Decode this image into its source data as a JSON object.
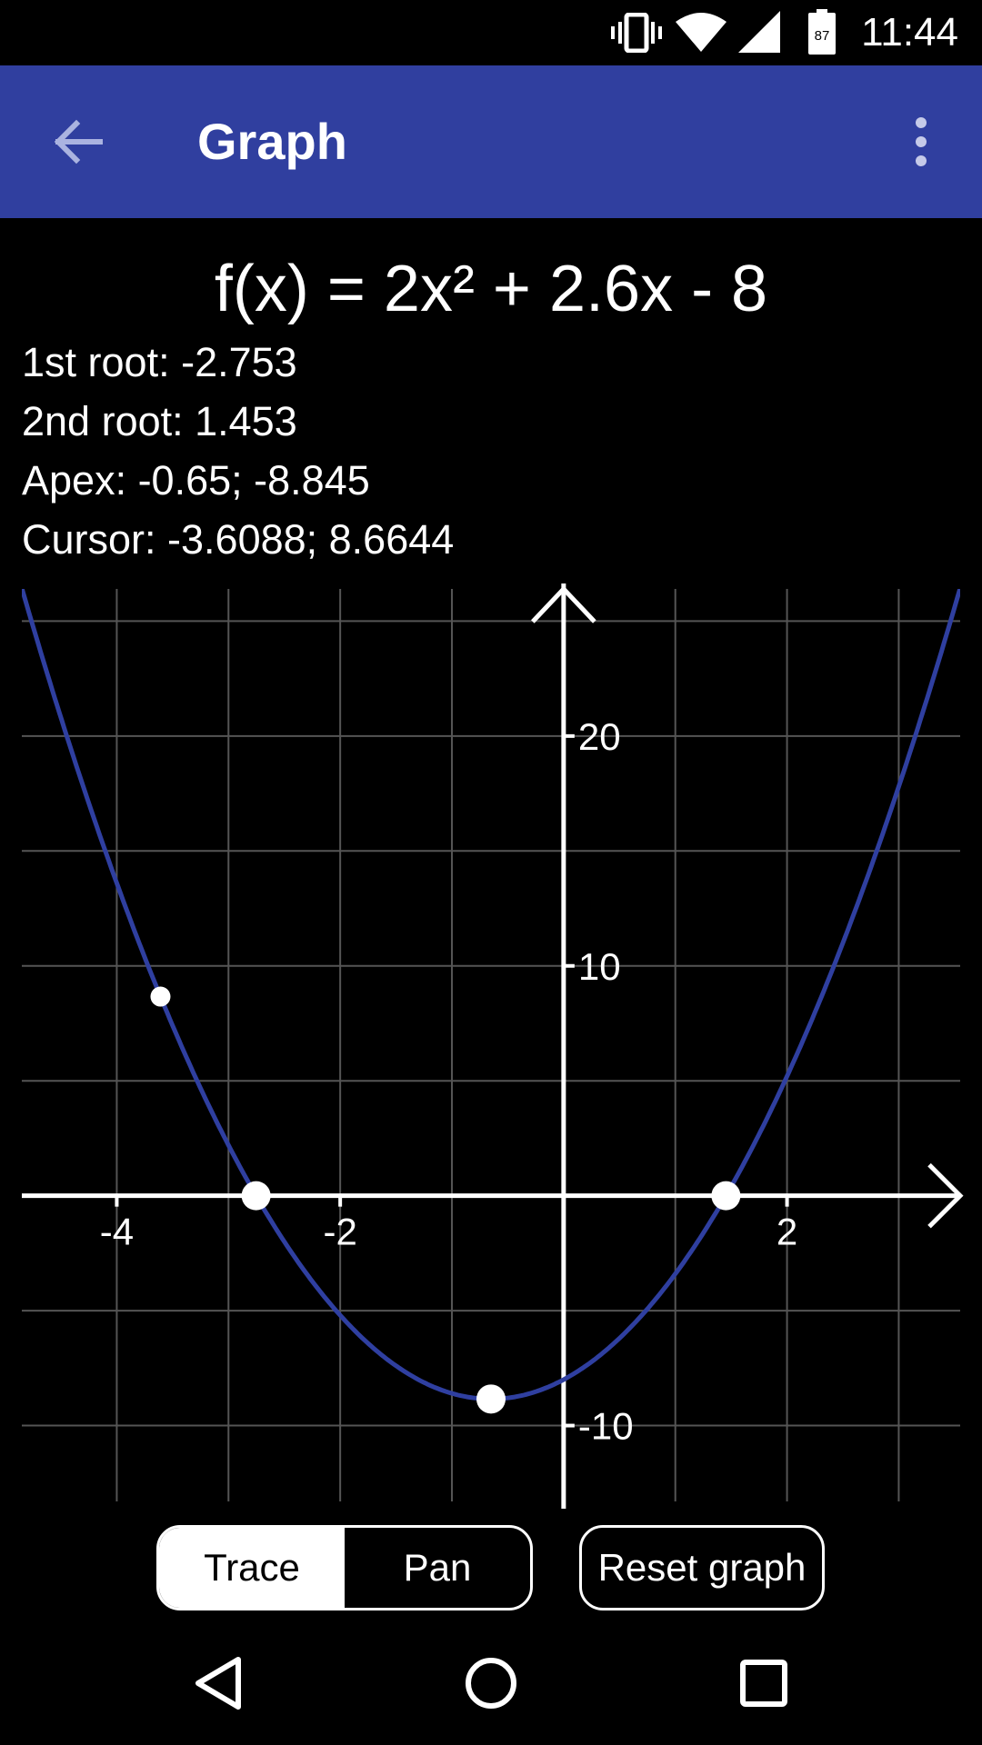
{
  "status_bar": {
    "time": "11:44",
    "battery_level": "87",
    "icons": [
      "vibrate-icon",
      "wifi-icon",
      "signal-icon",
      "battery-icon"
    ]
  },
  "app_bar": {
    "title": "Graph",
    "back_icon": "arrow-back-icon",
    "menu_icon": "more-vert-icon",
    "color": "#303f9f"
  },
  "function": {
    "formula": "f(x) = 2x² + 2.6x - 8",
    "a": 2,
    "b": 2.6,
    "c": -8
  },
  "info": {
    "root1": "1st root: -2.753",
    "root2": "2nd root: 1.453",
    "apex": "Apex: -0.65; -8.845",
    "cursor": "Cursor: -3.6088; 8.6644"
  },
  "chart_data": {
    "type": "line",
    "series": [
      {
        "expression": "2x^2 + 2.6x - 8",
        "color": "#2f3fa0"
      }
    ],
    "x_ticks": [
      "-4",
      "-2",
      "2"
    ],
    "x_tick_values": [
      -4,
      -2,
      2
    ],
    "y_ticks": [
      "20",
      "10",
      "-10"
    ],
    "y_tick_values": [
      20,
      10,
      -10
    ],
    "xlim": [
      -4.85,
      3.55
    ],
    "ylim": [
      -13.3,
      26.4
    ],
    "grid": true,
    "marked_points": [
      {
        "name": "root-1",
        "x": -2.753,
        "y": 0
      },
      {
        "name": "root-2",
        "x": 1.453,
        "y": 0
      },
      {
        "name": "apex",
        "x": -0.65,
        "y": -8.845
      },
      {
        "name": "cursor",
        "x": -3.6088,
        "y": 8.6644
      }
    ]
  },
  "controls": {
    "trace_label": "Trace",
    "pan_label": "Pan",
    "active_mode": "Trace",
    "reset_label": "Reset graph"
  },
  "nav_bar": {
    "icons": [
      "nav-back-icon",
      "nav-home-icon",
      "nav-recents-icon"
    ]
  }
}
